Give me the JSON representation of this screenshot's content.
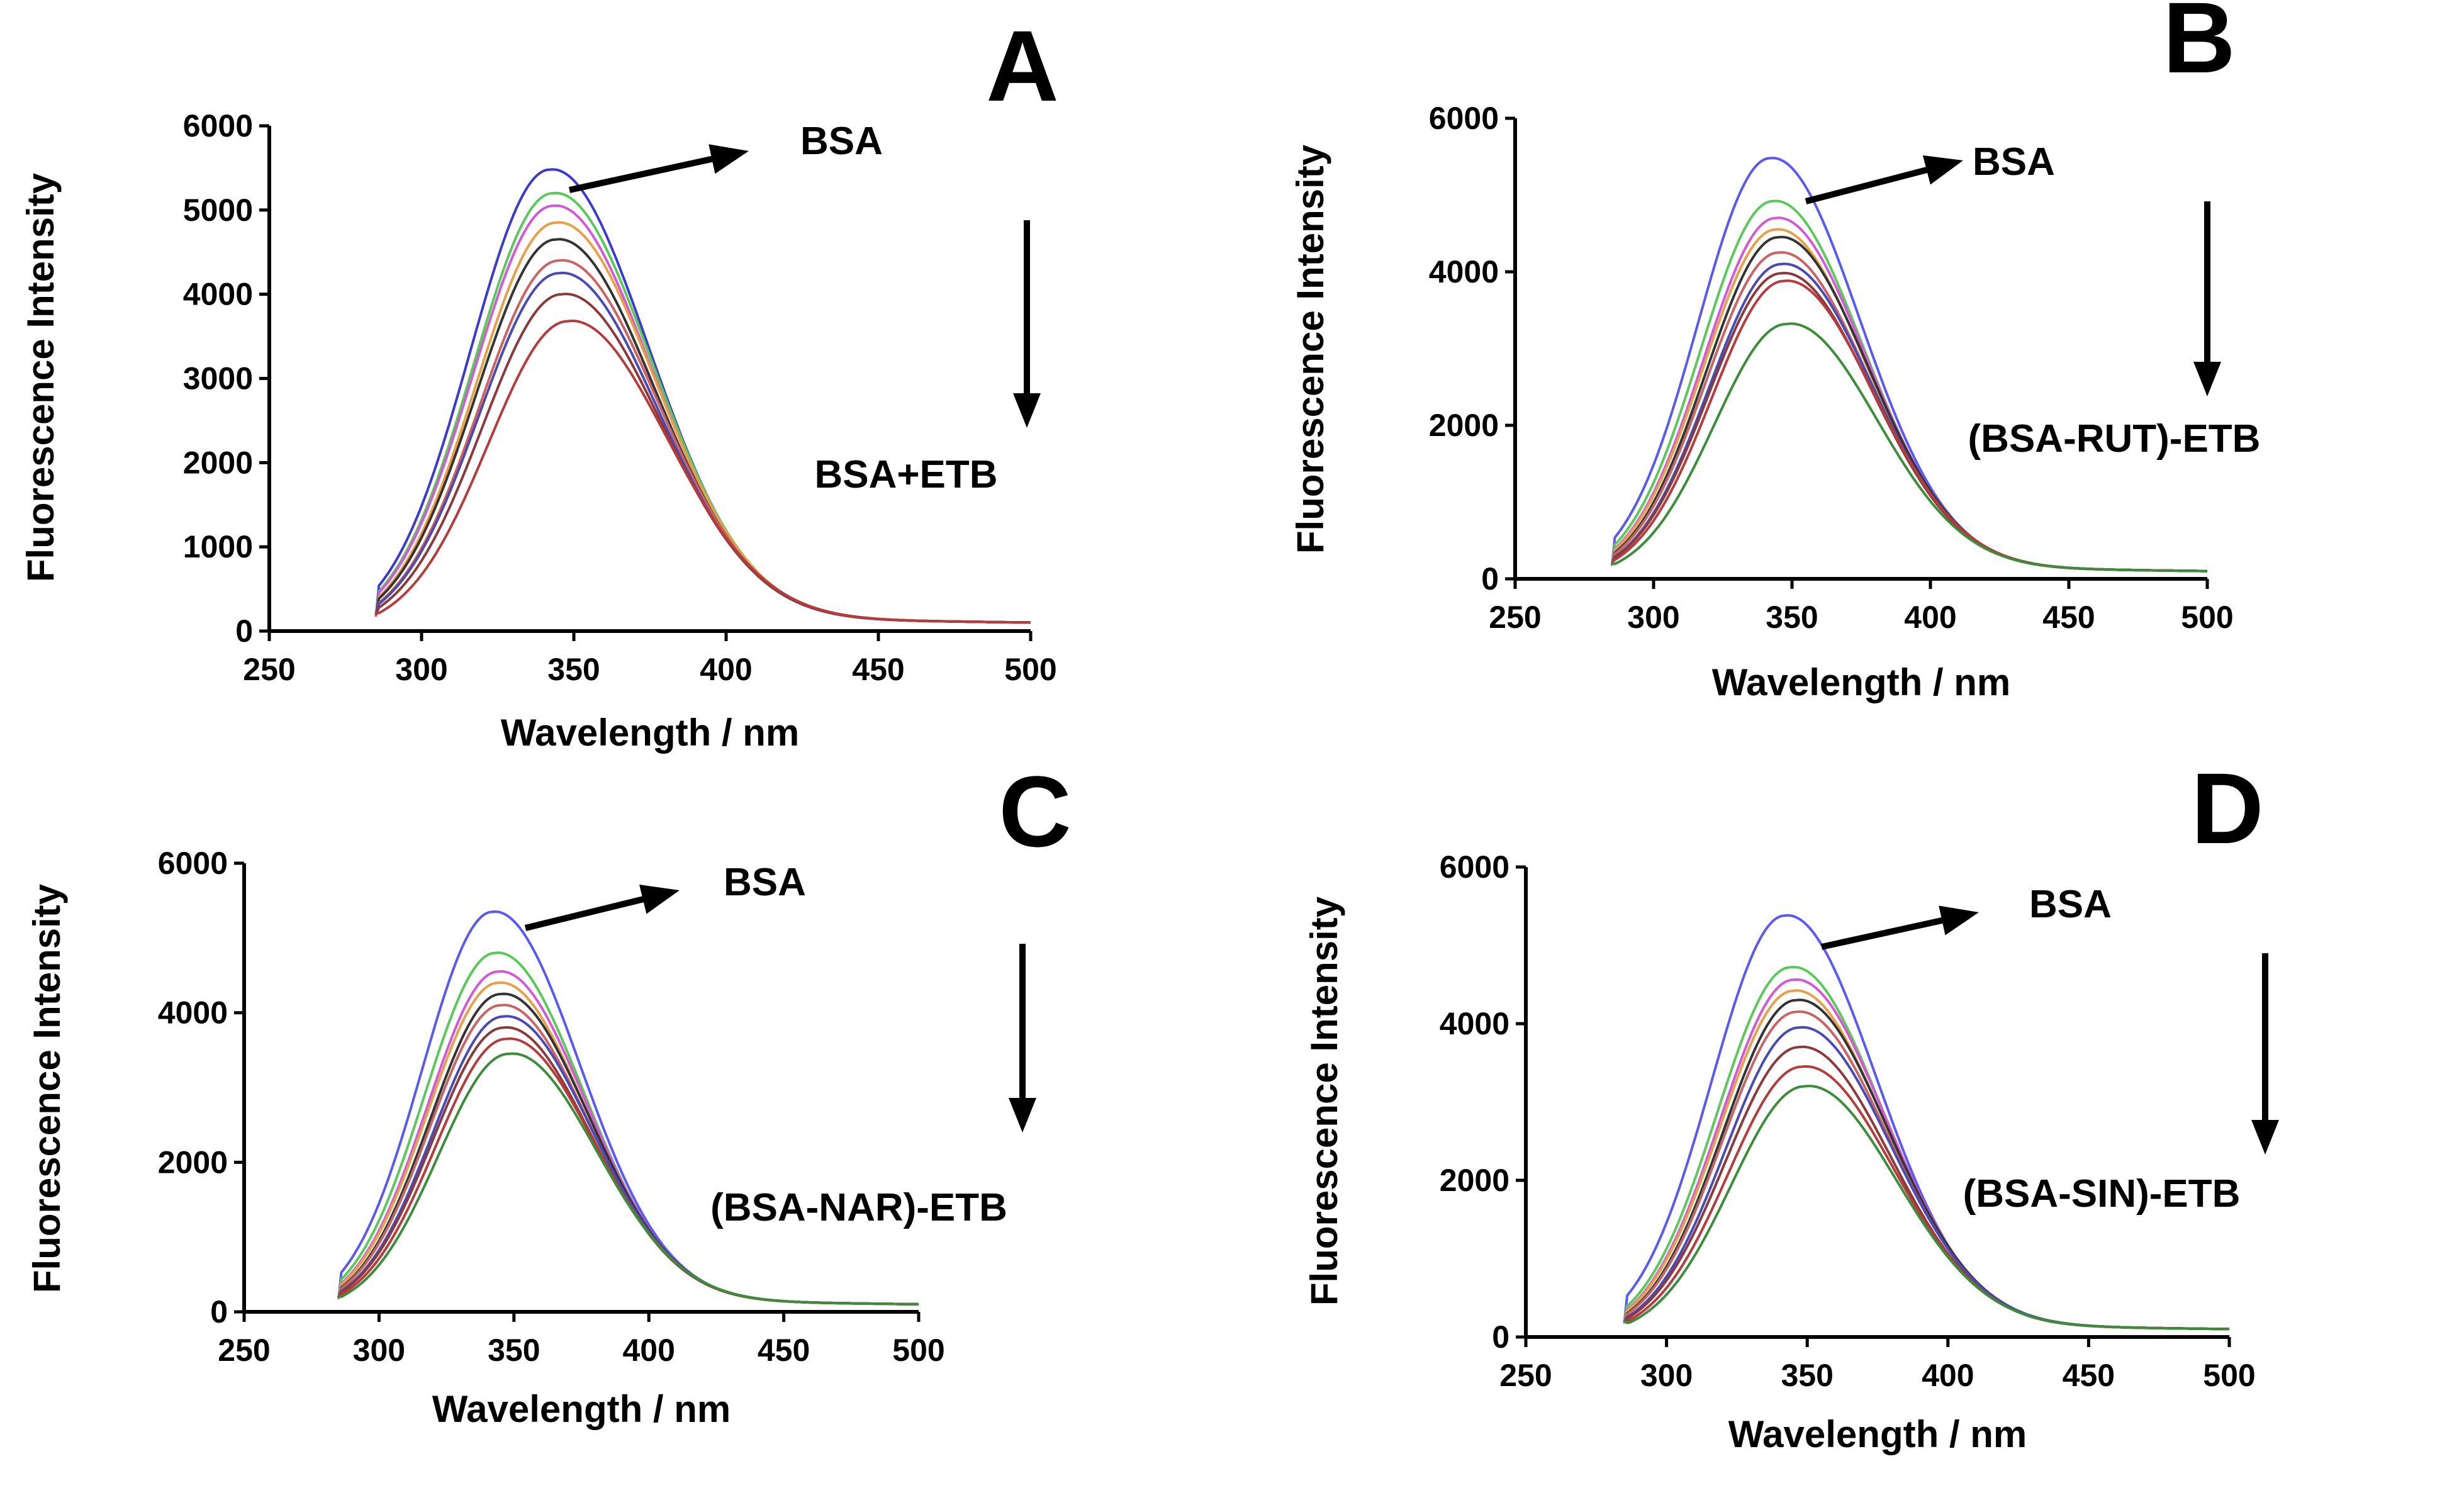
{
  "chart_data": [
    {
      "type": "line",
      "panel": "A",
      "xlabel": "Wavelength / nm",
      "ylabel": "Fluorescence Intensity",
      "xlim": [
        250,
        500
      ],
      "ylim": [
        0,
        6000
      ],
      "xticks": [
        250,
        300,
        350,
        400,
        450,
        500
      ],
      "yticks": [
        0,
        1000,
        2000,
        3000,
        4000,
        5000,
        6000
      ],
      "annotations": {
        "top": "BSA",
        "bottom": "BSA+ETB"
      },
      "series": [
        {
          "name": "s1",
          "color": "#3a3ad0",
          "peak_x": 342,
          "peak_y": 5480
        },
        {
          "name": "s2",
          "color": "#5cc85c",
          "peak_x": 343,
          "peak_y": 5200
        },
        {
          "name": "s3",
          "color": "#d25ad2",
          "peak_x": 343,
          "peak_y": 5050
        },
        {
          "name": "s4",
          "color": "#e6a04a",
          "peak_x": 344,
          "peak_y": 4850
        },
        {
          "name": "s5",
          "color": "#333333",
          "peak_x": 344,
          "peak_y": 4650
        },
        {
          "name": "s6",
          "color": "#c86464",
          "peak_x": 345,
          "peak_y": 4400
        },
        {
          "name": "s7",
          "color": "#4a4ab4",
          "peak_x": 345,
          "peak_y": 4250
        },
        {
          "name": "s8",
          "color": "#8a3a3a",
          "peak_x": 346,
          "peak_y": 4000
        },
        {
          "name": "s9",
          "color": "#b43c3c",
          "peak_x": 348,
          "peak_y": 3680
        }
      ]
    },
    {
      "type": "line",
      "panel": "B",
      "xlabel": "Wavelength / nm",
      "ylabel": "Fluorescence Intensity",
      "xlim": [
        250,
        500
      ],
      "ylim": [
        0,
        6000
      ],
      "xticks": [
        250,
        300,
        350,
        400,
        450,
        500
      ],
      "yticks": [
        0,
        2000,
        4000,
        6000
      ],
      "annotations": {
        "top": "BSA",
        "bottom": "(BSA-RUT)-ETB"
      },
      "series": [
        {
          "name": "s1",
          "color": "#5a5af0",
          "peak_x": 342,
          "peak_y": 5480
        },
        {
          "name": "s2",
          "color": "#5cc85c",
          "peak_x": 343,
          "peak_y": 4920
        },
        {
          "name": "s3",
          "color": "#d25ad2",
          "peak_x": 344,
          "peak_y": 4700
        },
        {
          "name": "s4",
          "color": "#e6a04a",
          "peak_x": 344,
          "peak_y": 4550
        },
        {
          "name": "s5",
          "color": "#333333",
          "peak_x": 345,
          "peak_y": 4450
        },
        {
          "name": "s6",
          "color": "#c86464",
          "peak_x": 345,
          "peak_y": 4250
        },
        {
          "name": "s7",
          "color": "#4a4ab4",
          "peak_x": 346,
          "peak_y": 4100
        },
        {
          "name": "s8",
          "color": "#8a3a3a",
          "peak_x": 346,
          "peak_y": 3980
        },
        {
          "name": "s9",
          "color": "#b43c3c",
          "peak_x": 347,
          "peak_y": 3880
        },
        {
          "name": "s10",
          "color": "#3c8c3c",
          "peak_x": 348,
          "peak_y": 3320
        }
      ]
    },
    {
      "type": "line",
      "panel": "C",
      "xlabel": "Wavelength / nm",
      "ylabel": "Fluorescence Intensity",
      "xlim": [
        250,
        500
      ],
      "ylim": [
        0,
        6000
      ],
      "xticks": [
        250,
        300,
        350,
        400,
        450,
        500
      ],
      "yticks": [
        0,
        2000,
        4000,
        6000
      ],
      "annotations": {
        "top": "BSA",
        "bottom": "(BSA-NAR)-ETB"
      },
      "series": [
        {
          "name": "s1",
          "color": "#5a5af0",
          "peak_x": 342,
          "peak_y": 5350
        },
        {
          "name": "s2",
          "color": "#5cc85c",
          "peak_x": 343,
          "peak_y": 4800
        },
        {
          "name": "s3",
          "color": "#d25ad2",
          "peak_x": 344,
          "peak_y": 4550
        },
        {
          "name": "s4",
          "color": "#e6a04a",
          "peak_x": 344,
          "peak_y": 4400
        },
        {
          "name": "s5",
          "color": "#333333",
          "peak_x": 345,
          "peak_y": 4250
        },
        {
          "name": "s6",
          "color": "#c86464",
          "peak_x": 345,
          "peak_y": 4100
        },
        {
          "name": "s7",
          "color": "#4a4ab4",
          "peak_x": 346,
          "peak_y": 3950
        },
        {
          "name": "s8",
          "color": "#8a3a3a",
          "peak_x": 346,
          "peak_y": 3800
        },
        {
          "name": "s9",
          "color": "#b43c3c",
          "peak_x": 347,
          "peak_y": 3650
        },
        {
          "name": "s10",
          "color": "#3c8c3c",
          "peak_x": 348,
          "peak_y": 3450
        }
      ]
    },
    {
      "type": "line",
      "panel": "D",
      "xlabel": "Wavelength / nm",
      "ylabel": "Fluorescence Intensity",
      "xlim": [
        250,
        500
      ],
      "ylim": [
        0,
        6000
      ],
      "xticks": [
        250,
        300,
        350,
        400,
        450,
        500
      ],
      "yticks": [
        0,
        2000,
        4000,
        6000
      ],
      "annotations": {
        "top": "BSA",
        "bottom": "(BSA-SIN)-ETB"
      },
      "series": [
        {
          "name": "s1",
          "color": "#5a5af0",
          "peak_x": 342,
          "peak_y": 5380
        },
        {
          "name": "s2",
          "color": "#5cc85c",
          "peak_x": 344,
          "peak_y": 4720
        },
        {
          "name": "s3",
          "color": "#d25ad2",
          "peak_x": 345,
          "peak_y": 4560
        },
        {
          "name": "s4",
          "color": "#e6a04a",
          "peak_x": 345,
          "peak_y": 4420
        },
        {
          "name": "s5",
          "color": "#333333",
          "peak_x": 346,
          "peak_y": 4300
        },
        {
          "name": "s6",
          "color": "#c86464",
          "peak_x": 346,
          "peak_y": 4150
        },
        {
          "name": "s7",
          "color": "#4a4ab4",
          "peak_x": 347,
          "peak_y": 3950
        },
        {
          "name": "s8",
          "color": "#8a3a3a",
          "peak_x": 347,
          "peak_y": 3700
        },
        {
          "name": "s9",
          "color": "#b43c3c",
          "peak_x": 348,
          "peak_y": 3450
        },
        {
          "name": "s10",
          "color": "#3c8c3c",
          "peak_x": 349,
          "peak_y": 3200
        }
      ]
    }
  ]
}
